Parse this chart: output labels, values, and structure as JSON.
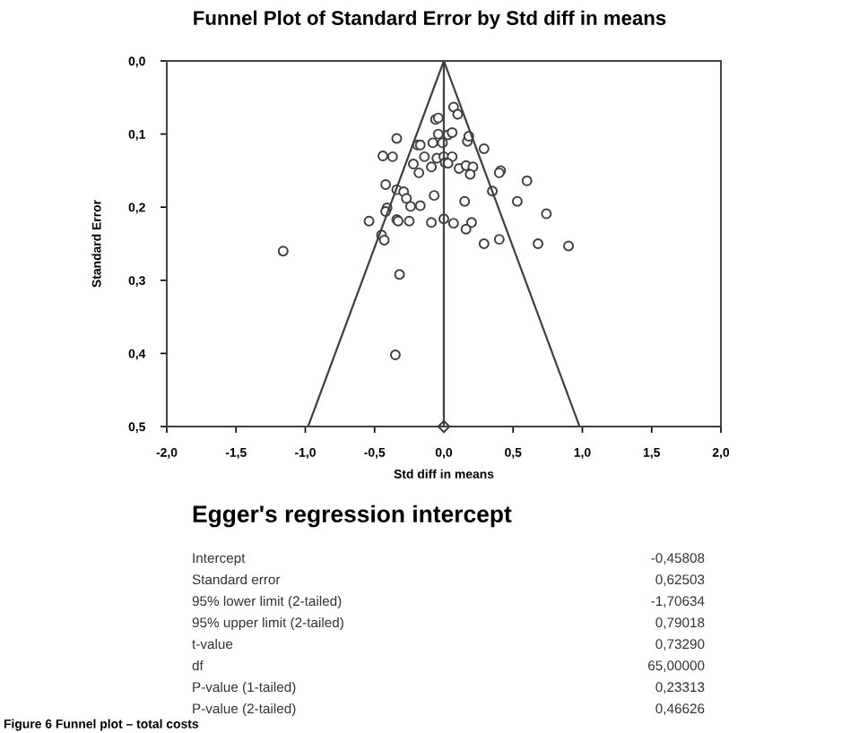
{
  "chart_data": {
    "type": "scatter",
    "title": "Funnel Plot of Standard Error by Std diff in means",
    "xlabel": "Std diff in means",
    "ylabel": "Standard Error",
    "xlim": [
      -2.0,
      2.0
    ],
    "ylim": [
      0.5,
      0.0
    ],
    "xticks": [
      {
        "value": -2.0,
        "label": "-2,0"
      },
      {
        "value": -1.5,
        "label": "-1,5"
      },
      {
        "value": -1.0,
        "label": "-1,0"
      },
      {
        "value": -0.5,
        "label": "-0,5"
      },
      {
        "value": 0.0,
        "label": "0,0"
      },
      {
        "value": 0.5,
        "label": "0,5"
      },
      {
        "value": 1.0,
        "label": "1,0"
      },
      {
        "value": 1.5,
        "label": "1,5"
      },
      {
        "value": 2.0,
        "label": "2,0"
      }
    ],
    "yticks": [
      {
        "value": 0.0,
        "label": "0,0"
      },
      {
        "value": 0.1,
        "label": "0,1"
      },
      {
        "value": 0.2,
        "label": "0,2"
      },
      {
        "value": 0.3,
        "label": "0,3"
      },
      {
        "value": 0.4,
        "label": "0,4"
      },
      {
        "value": 0.5,
        "label": "0,5"
      }
    ],
    "grid": false,
    "legend": false,
    "series": [
      {
        "marker": "circle",
        "color": "#404040",
        "x": [
          0.07,
          0.1,
          -0.34,
          -0.19,
          -0.17,
          -0.06,
          -0.04,
          -0.04,
          0.03,
          0.06,
          -0.08,
          -0.01,
          0.17,
          0.18,
          0.29,
          -0.44,
          -0.37,
          -0.14,
          -0.22,
          -0.05,
          0.0,
          0.06,
          0.01,
          0.03,
          -0.09,
          -0.18,
          0.11,
          0.16,
          0.21,
          0.19,
          0.41,
          0.4,
          0.6,
          0.35,
          -0.42,
          -0.34,
          -0.29,
          -0.27,
          -0.24,
          -0.17,
          -0.07,
          0.15,
          0.53,
          -0.41,
          -0.42,
          0.74,
          -0.54,
          -0.34,
          -0.33,
          -0.25,
          -0.09,
          0.0,
          0.07,
          0.2,
          0.16,
          -0.45,
          -0.43,
          0.29,
          0.4,
          0.68,
          0.9,
          -1.16,
          -0.32,
          -0.35
        ],
        "values": [
          0.063,
          0.073,
          0.106,
          0.115,
          0.115,
          0.08,
          0.078,
          0.1,
          0.101,
          0.098,
          0.112,
          0.112,
          0.11,
          0.103,
          0.12,
          0.13,
          0.131,
          0.131,
          0.141,
          0.133,
          0.131,
          0.131,
          0.139,
          0.14,
          0.145,
          0.153,
          0.147,
          0.143,
          0.145,
          0.155,
          0.15,
          0.153,
          0.164,
          0.178,
          0.169,
          0.176,
          0.179,
          0.188,
          0.199,
          0.198,
          0.184,
          0.192,
          0.192,
          0.201,
          0.206,
          0.209,
          0.219,
          0.217,
          0.219,
          0.219,
          0.221,
          0.216,
          0.222,
          0.221,
          0.23,
          0.238,
          0.245,
          0.25,
          0.244,
          0.25,
          0.253,
          0.26,
          0.292,
          0.402
        ]
      },
      {
        "marker": "diamond",
        "color": "#404040",
        "x": [
          0.0
        ],
        "values": [
          0.5
        ]
      },
      {
        "type": "line",
        "marker": "none",
        "line_style": "solid",
        "color": "#404040",
        "x": [
          -0.98,
          0.0,
          0.98
        ],
        "values": [
          0.5,
          0.0,
          0.5
        ]
      }
    ],
    "ref_lines": [
      {
        "axis": "x",
        "value": 0.0,
        "label": null,
        "color": "#404040",
        "line_style": "solid"
      }
    ],
    "annotations": [
      "Egger's regression intercept",
      "Intercept",
      "-0,45808",
      "Standard error",
      "0,62503",
      "95% lower limit (2-tailed)",
      "-1,70634",
      "95% upper limit (2-tailed)",
      "0,79018",
      "t-value",
      "0,73290",
      "df",
      "65,00000",
      "P-value (1-tailed)",
      "0,23313",
      "P-value (2-tailed)",
      "0,46626",
      "Figure 6 Funnel plot – total costs"
    ]
  }
}
